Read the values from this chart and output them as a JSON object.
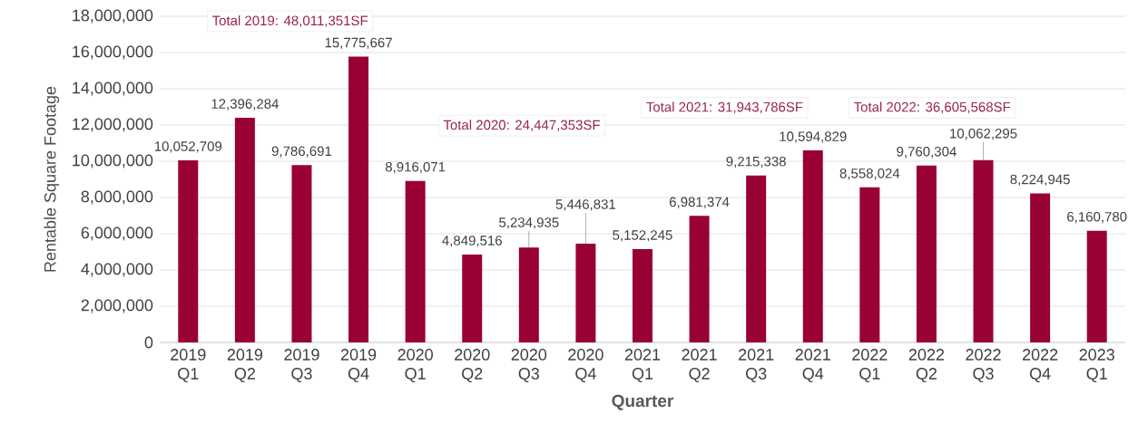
{
  "chart_data": {
    "type": "bar",
    "xlabel": "Quarter",
    "ylabel": "Rentable Square Footage",
    "categories": [
      "2019 Q1",
      "2019 Q2",
      "2019 Q3",
      "2019 Q4",
      "2020 Q1",
      "2020 Q2",
      "2020 Q3",
      "2020 Q4",
      "2021 Q1",
      "2021 Q2",
      "2021 Q3",
      "2021 Q4",
      "2022 Q1",
      "2022 Q2",
      "2022 Q3",
      "2022 Q4",
      "2023 Q1"
    ],
    "values": [
      10052709,
      12396284,
      9786691,
      15775667,
      8916071,
      4849516,
      5234935,
      5446831,
      5152245,
      6981374,
      9215338,
      10594829,
      8558024,
      9760304,
      10062295,
      8224945,
      6160780
    ],
    "value_labels": [
      "10,052,709",
      "12,396,284",
      "9,786,691",
      "15,775,667",
      "8,916,071",
      "4,849,516",
      "5,234,935",
      "5,446,831",
      "5,152,245",
      "6,981,374",
      "9,215,338",
      "10,594,829",
      "8,558,024",
      "9,760,304",
      "10,062,295",
      "8,224,945",
      "6,160,780"
    ],
    "color": "#990033",
    "ylim": [
      0,
      18000000
    ],
    "yticks": [
      {
        "value": 0,
        "label": "0"
      },
      {
        "value": 2000000,
        "label": "2,000,000"
      },
      {
        "value": 4000000,
        "label": "4,000,000"
      },
      {
        "value": 6000000,
        "label": "6,000,000"
      },
      {
        "value": 8000000,
        "label": "8,000,000"
      },
      {
        "value": 10000000,
        "label": "10,000,000"
      },
      {
        "value": 12000000,
        "label": "12,000,000"
      },
      {
        "value": 14000000,
        "label": "14,000,000"
      },
      {
        "value": 16000000,
        "label": "16,000,000"
      },
      {
        "value": 18000000,
        "label": "18,000,000"
      }
    ],
    "grid": "y",
    "annotations": [
      "Total 2019: 48,011,351SF",
      "Total 2020: 24,447,353SF",
      "Total 2021: 31,943,786SF",
      "Total 2022: 36,605,568SF"
    ]
  }
}
